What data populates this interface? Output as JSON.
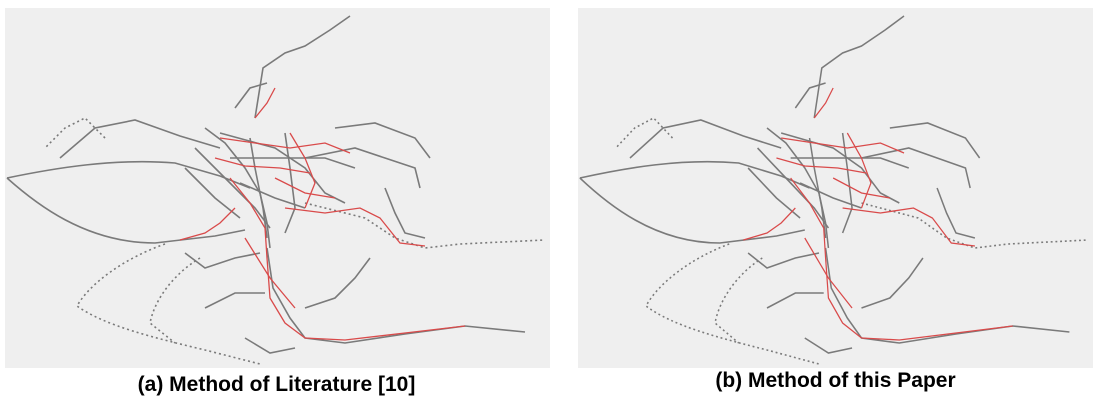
{
  "panels": [
    {
      "caption": "(a) Method of Literature [10]"
    },
    {
      "caption": "(b) Method of this Paper"
    }
  ]
}
